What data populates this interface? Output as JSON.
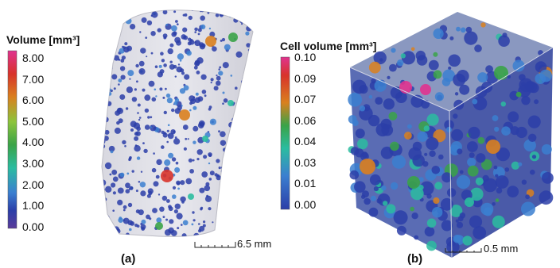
{
  "panel_a": {
    "label": "(a)",
    "legend": {
      "title": "Volume [mm³]",
      "ticks": [
        "8.00",
        "7.00",
        "6.00",
        "5.00",
        "4.00",
        "3.00",
        "2.00",
        "1.00",
        "0.00"
      ],
      "colors": [
        "#e0338f",
        "#d8332b",
        "#d9801f",
        "#8cc43c",
        "#3aa348",
        "#2bbca0",
        "#3b7fd0",
        "#2b3ea8",
        "#5a3c9a"
      ]
    },
    "scale_bar": "6.5 mm"
  },
  "panel_b": {
    "label": "(b)",
    "legend": {
      "title": "Cell volume [mm³]",
      "ticks": [
        "0.10",
        "0.09",
        "0.07",
        "0.06",
        "0.04",
        "0.03",
        "0.01",
        "0.00"
      ],
      "colors": [
        "#e0338f",
        "#d8332b",
        "#d9801f",
        "#3aa348",
        "#2bbca0",
        "#3b7fd0",
        "#2b3ea8"
      ]
    },
    "scale_bar": "0.5 mm"
  }
}
